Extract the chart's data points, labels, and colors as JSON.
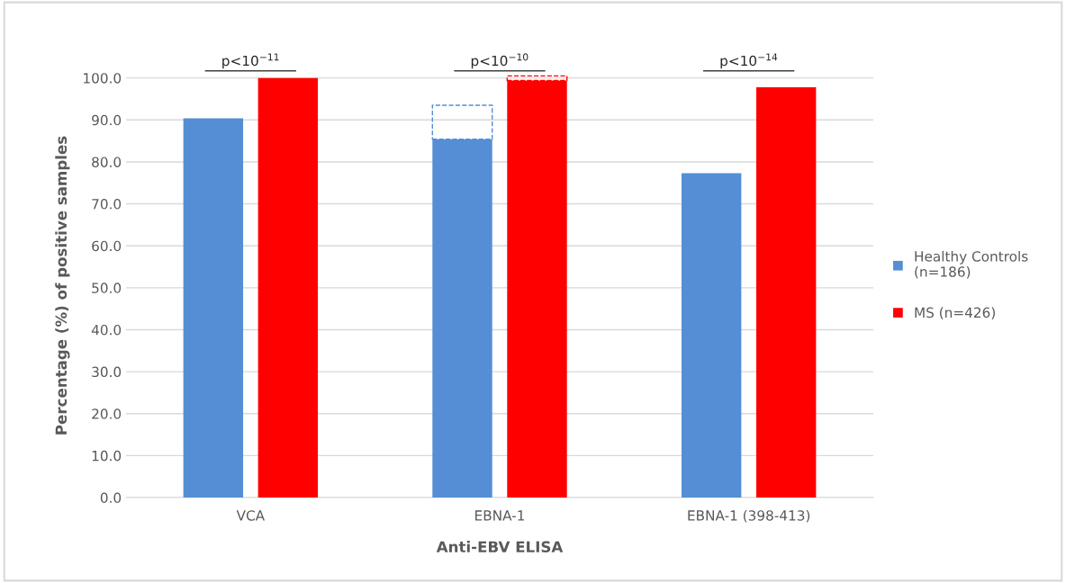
{
  "chart_data": {
    "type": "bar",
    "xlabel": "Anti-EBV ELISA",
    "ylabel": "Percentage (%) of positive samples",
    "categories": [
      "VCA",
      "EBNA-1",
      "EBNA-1 (398-413)"
    ],
    "series": [
      {
        "name": "Healthy Controls\n(n=186)",
        "color": "#558ed5",
        "values": [
          90.4,
          85.4,
          77.3
        ]
      },
      {
        "name": "MS (n=426)",
        "color": "#ff0000",
        "values": [
          100,
          99.4,
          97.8
        ]
      },
      {
        "color": "#558ed5",
        "values": [
          null,
          8.1,
          null
        ],
        "base": [
          null,
          85.4,
          null
        ],
        "line_style": "dashed"
      },
      {
        "color": "#ff0000",
        "values": [
          null,
          1.1,
          null
        ],
        "base": [
          null,
          99.4,
          null
        ],
        "line_style": "dashed"
      }
    ],
    "ylim": [
      0,
      101
    ],
    "yticks": [
      {
        "value": 0,
        "label": "0.0"
      },
      {
        "value": 10,
        "label": "10.0"
      },
      {
        "value": 20,
        "label": "20.0"
      },
      {
        "value": 30,
        "label": "30.0"
      },
      {
        "value": 40,
        "label": "40.0"
      },
      {
        "value": 50,
        "label": "50.0"
      },
      {
        "value": 60,
        "label": "60.0"
      },
      {
        "value": 70,
        "label": "70.0"
      },
      {
        "value": 80,
        "label": "80.0"
      },
      {
        "value": 90,
        "label": "90.0"
      },
      {
        "value": 100,
        "label": "100.0"
      }
    ],
    "grid": "y",
    "legend": "right",
    "annotations": [
      "p<10$^{−11}$",
      "p<10$^{−10}$",
      "p<10$^{−14}$"
    ]
  }
}
